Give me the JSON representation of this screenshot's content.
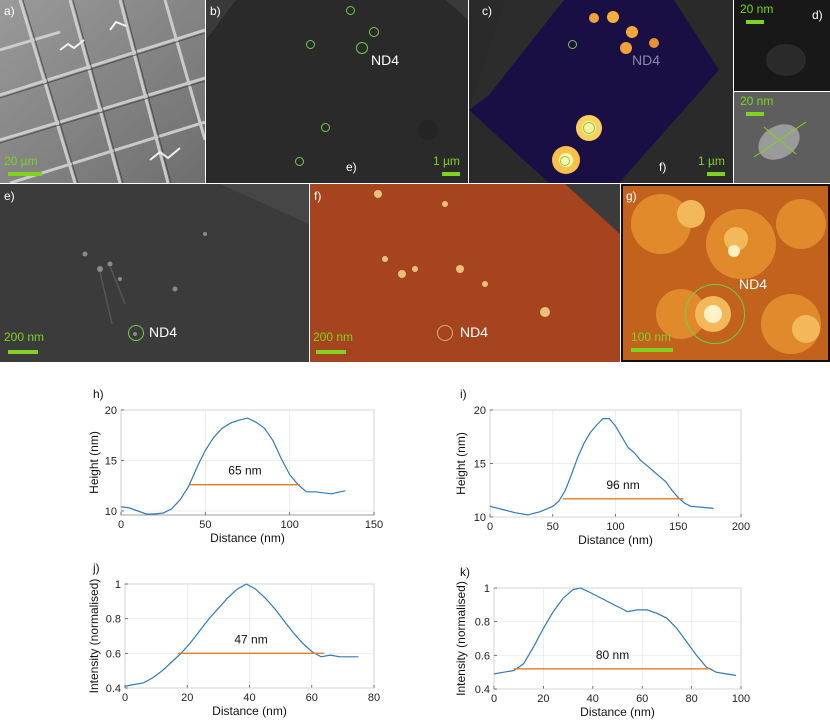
{
  "panels": {
    "a": {
      "letter": "a)",
      "scale": "20 µm"
    },
    "b": {
      "letter": "b)",
      "inner_letter": "e)",
      "scale": "1 µm",
      "nd": "ND4"
    },
    "c": {
      "letter": "c)",
      "inner_letter": "f)",
      "scale": "1 µm",
      "nd": "ND4"
    },
    "d": {
      "letter": "d)",
      "scale_top": "20 nm",
      "scale_bottom": "20 nm"
    },
    "e": {
      "letter": "e)",
      "scale": "200 nm",
      "nd": "ND4"
    },
    "f": {
      "letter": "f)",
      "scale": "200 nm",
      "nd": "ND4"
    },
    "g": {
      "letter": "g)",
      "scale": "100 nm",
      "nd": "ND4"
    }
  },
  "colors": {
    "scalebar": "#7ed321",
    "profile": "#2b7bbf",
    "fwhm": "#e07b27"
  },
  "chart_data": [
    {
      "id": "h",
      "type": "line",
      "panel_letter": "h)",
      "xlabel": "Distance (nm)",
      "ylabel": "Height (nm)",
      "xlim": [
        0,
        150
      ],
      "ylim": [
        9.6,
        20
      ],
      "xticks": [
        "0",
        "50",
        "100",
        "150"
      ],
      "yticks": [
        "10",
        "15",
        "20"
      ],
      "x": [
        0,
        5,
        10,
        15,
        20,
        25,
        30,
        35,
        40,
        45,
        50,
        55,
        60,
        65,
        70,
        75,
        80,
        85,
        90,
        95,
        100,
        105,
        110,
        115,
        120,
        125,
        130,
        133
      ],
      "y": [
        10.4,
        10.3,
        10.0,
        9.7,
        9.7,
        9.8,
        10.2,
        11.1,
        12.4,
        14.3,
        16.0,
        17.3,
        18.2,
        18.7,
        19.0,
        19.2,
        18.8,
        18.2,
        17.0,
        15.2,
        13.6,
        12.6,
        11.9,
        11.9,
        11.8,
        11.7,
        11.9,
        12.0
      ],
      "fwhm": {
        "label": "65 nm",
        "x": [
          41,
          106
        ],
        "y": 12.6
      }
    },
    {
      "id": "i",
      "type": "line",
      "panel_letter": "i)",
      "xlabel": "Distance (nm)",
      "ylabel": "Height (nm)",
      "xlim": [
        0,
        200
      ],
      "ylim": [
        10,
        20
      ],
      "xticks": [
        "0",
        "50",
        "100",
        "150",
        "200"
      ],
      "yticks": [
        "10",
        "15",
        "20"
      ],
      "x": [
        0,
        10,
        20,
        30,
        40,
        50,
        55,
        60,
        65,
        70,
        75,
        80,
        85,
        90,
        95,
        100,
        105,
        110,
        115,
        120,
        125,
        130,
        135,
        140,
        145,
        150,
        155,
        160,
        170,
        178
      ],
      "y": [
        11.0,
        10.7,
        10.4,
        10.2,
        10.5,
        11.0,
        11.5,
        12.5,
        14.0,
        15.6,
        16.9,
        17.9,
        18.6,
        19.2,
        19.2,
        18.5,
        17.5,
        16.5,
        16.0,
        15.3,
        14.8,
        14.3,
        13.8,
        13.3,
        12.5,
        11.8,
        11.3,
        11.0,
        10.9,
        10.8
      ],
      "fwhm": {
        "label": "96 nm",
        "x": [
          58,
          154
        ],
        "y": 11.7
      }
    },
    {
      "id": "j",
      "type": "line",
      "panel_letter": "j)",
      "xlabel": "Distance (nm)",
      "ylabel": "Intensity (normalised)",
      "xlim": [
        0,
        80
      ],
      "ylim": [
        0.4,
        1.0
      ],
      "xticks": [
        "0",
        "20",
        "40",
        "60",
        "80"
      ],
      "yticks": [
        "0.4",
        "0.6",
        "0.8",
        "1"
      ],
      "x": [
        0,
        3,
        6,
        9,
        12,
        15,
        18,
        21,
        24,
        27,
        30,
        33,
        36,
        39,
        42,
        45,
        48,
        51,
        54,
        57,
        60,
        63,
        66,
        69,
        72,
        75
      ],
      "y": [
        0.41,
        0.42,
        0.43,
        0.46,
        0.5,
        0.55,
        0.6,
        0.66,
        0.73,
        0.8,
        0.86,
        0.92,
        0.97,
        1.0,
        0.97,
        0.92,
        0.86,
        0.79,
        0.72,
        0.66,
        0.61,
        0.58,
        0.59,
        0.58,
        0.58,
        0.58
      ],
      "fwhm": {
        "label": "47 nm",
        "x": [
          17,
          64
        ],
        "y": 0.6
      }
    },
    {
      "id": "k",
      "type": "line",
      "panel_letter": "k)",
      "xlabel": "Distance (nm)",
      "ylabel": "Intensity (normalised)",
      "xlim": [
        0,
        100
      ],
      "ylim": [
        0.4,
        1.0
      ],
      "xticks": [
        "0",
        "20",
        "40",
        "60",
        "80",
        "100"
      ],
      "yticks": [
        "0.4",
        "0.6",
        "0.8",
        "1"
      ],
      "x": [
        0,
        4,
        8,
        12,
        16,
        20,
        24,
        28,
        32,
        35,
        38,
        42,
        46,
        50,
        54,
        58,
        62,
        66,
        70,
        74,
        78,
        82,
        86,
        90,
        94,
        98
      ],
      "y": [
        0.49,
        0.5,
        0.51,
        0.55,
        0.65,
        0.76,
        0.86,
        0.94,
        0.99,
        1.0,
        0.98,
        0.95,
        0.92,
        0.89,
        0.86,
        0.87,
        0.87,
        0.85,
        0.82,
        0.76,
        0.68,
        0.6,
        0.53,
        0.5,
        0.49,
        0.48
      ],
      "fwhm": {
        "label": "80 nm",
        "x": [
          8,
          88
        ],
        "y": 0.52
      }
    }
  ]
}
